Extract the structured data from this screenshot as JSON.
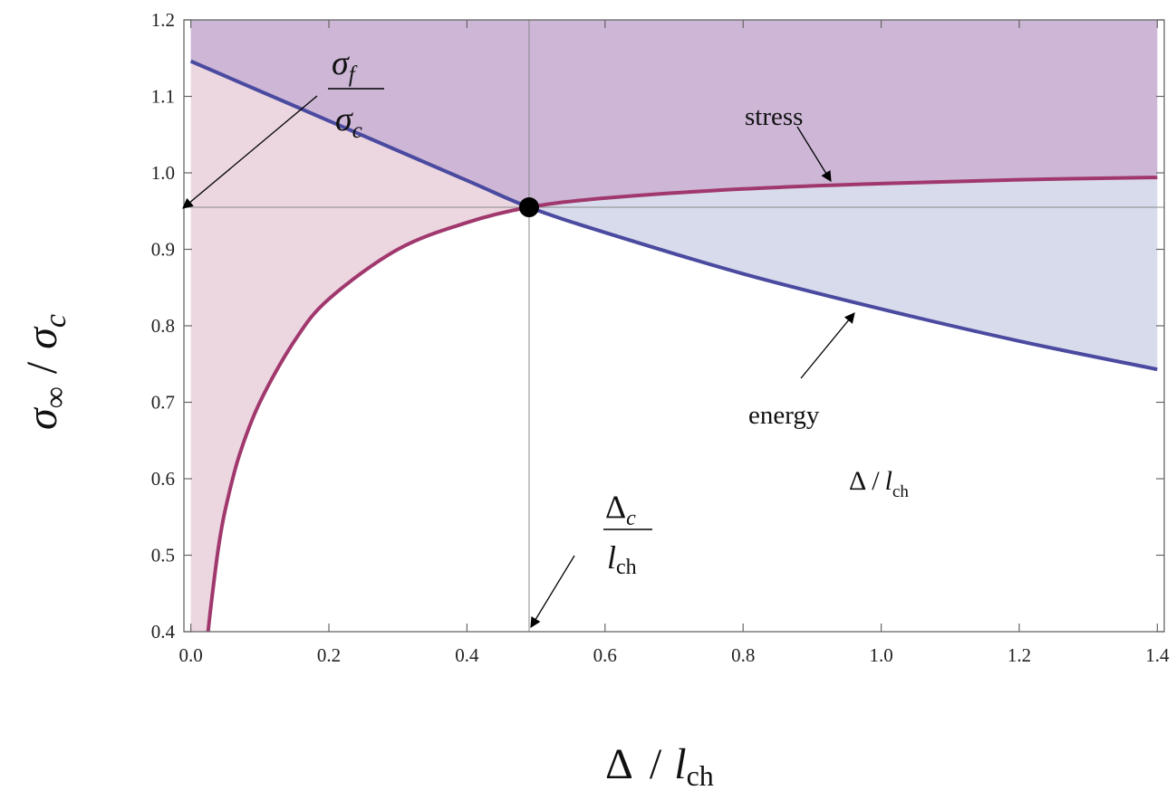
{
  "chart_data": {
    "type": "line",
    "xlim": [
      -0.01,
      1.41
    ],
    "ylim": [
      0.4,
      1.2
    ],
    "x_ticks": [
      {
        "value": 0.0,
        "label": "0.0"
      },
      {
        "value": 0.2,
        "label": "0.2"
      },
      {
        "value": 0.4,
        "label": "0.4"
      },
      {
        "value": 0.6,
        "label": "0.6"
      },
      {
        "value": 0.8,
        "label": "0.8"
      },
      {
        "value": 1.0,
        "label": "1.0"
      },
      {
        "value": 1.2,
        "label": "1.2"
      },
      {
        "value": 1.4,
        "label": "1.4"
      }
    ],
    "y_ticks": [
      {
        "value": 0.4,
        "label": "0.4"
      },
      {
        "value": 0.5,
        "label": "0.5"
      },
      {
        "value": 0.6,
        "label": "0.6"
      },
      {
        "value": 0.7,
        "label": "0.7"
      },
      {
        "value": 0.8,
        "label": "0.8"
      },
      {
        "value": 0.9,
        "label": "0.9"
      },
      {
        "value": 1.0,
        "label": "1.0"
      },
      {
        "value": 1.1,
        "label": "1.1"
      },
      {
        "value": 1.2,
        "label": "1.2"
      }
    ],
    "xlabel": {
      "symbol": "Δ",
      "sep": "/",
      "var": "l",
      "sub": "ch"
    },
    "ylabel": {
      "num": "σ",
      "num_sub": "∞",
      "sep": "/",
      "den": "σ",
      "den_sub": "c"
    },
    "series": [
      {
        "name": "stress",
        "color": "#a0386e",
        "x": [
          0.025,
          0.03,
          0.04,
          0.05,
          0.07,
          0.1,
          0.15,
          0.2,
          0.3,
          0.4,
          0.49,
          0.6,
          0.8,
          1.0,
          1.2,
          1.4
        ],
        "y": [
          0.4,
          0.44,
          0.51,
          0.56,
          0.63,
          0.7,
          0.78,
          0.835,
          0.9,
          0.935,
          0.955,
          0.967,
          0.979,
          0.986,
          0.991,
          0.994
        ]
      },
      {
        "name": "energy",
        "color": "#4a4aa0",
        "x": [
          0.0,
          0.2,
          0.4,
          0.49,
          0.6,
          0.8,
          1.0,
          1.2,
          1.4
        ],
        "y": [
          1.146,
          1.068,
          0.99,
          0.955,
          0.922,
          0.868,
          0.822,
          0.78,
          0.743
        ]
      }
    ],
    "critical_point": {
      "x": 0.49,
      "y": 0.955
    },
    "fill_colors": {
      "upper": "#cdb6d6",
      "stress_side": "#ecd6e0",
      "energy_side": "#d8dbeb"
    },
    "reference_line_color": "#888888",
    "annotations": {
      "stress": "stress",
      "energy": "energy",
      "sigma_f": {
        "num": "σ",
        "num_sub": "f",
        "den": "σ",
        "den_sub": "c"
      },
      "delta_c": {
        "num": "Δ",
        "num_sub": "c",
        "den": "l",
        "den_sub": "ch"
      },
      "inner_xlabel": {
        "symbol": "Δ",
        "sep": "/",
        "var": "l",
        "sub": "ch"
      }
    }
  }
}
